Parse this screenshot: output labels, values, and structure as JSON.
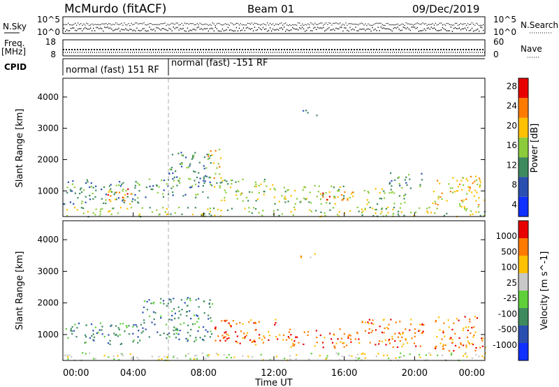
{
  "header": {
    "radar": "McMurdo (fitACF)",
    "beam": "Beam 01",
    "date": "09/Dec/2019"
  },
  "noise_panel": {
    "left_label": "N.Sky",
    "left_ticks": [
      "10^5",
      "10^0"
    ],
    "right_label": "N.Search",
    "right_ticks": [
      "10^5",
      "10^0"
    ]
  },
  "freq_panel": {
    "left_label": "Freq.",
    "left_unit": "[MHz]",
    "left_ticks": [
      "18",
      "8"
    ],
    "right_label": "Nave",
    "right_ticks": [
      "60",
      "0"
    ]
  },
  "cpid_panel": {
    "label": "CPID",
    "modes": [
      "normal (fast) 151 RF",
      "normal (fast) -151 RF"
    ]
  },
  "chart_data": [
    {
      "type": "heatmap",
      "name": "power",
      "ylabel": "Slant Range [km]",
      "yticks": [
        1000,
        2000,
        3000,
        4000
      ],
      "ylim": [
        180,
        4600
      ],
      "colorbar_label": "Power [dB]",
      "colorbar_ticks": [
        "4",
        "8",
        "12",
        "16",
        "20",
        "24",
        "28"
      ],
      "colorbar_colors": [
        "#1030ff",
        "#2a4fb0",
        "#3e8a5e",
        "#8ccc3c",
        "#ffc000",
        "#ff7b00",
        "#e80000"
      ],
      "scatter_regions": [
        {
          "x0": 0.0,
          "x1": 4.6,
          "range": [
            600,
            1400
          ],
          "level": 2
        },
        {
          "x0": 2.5,
          "x1": 4.0,
          "range": [
            600,
            1100
          ],
          "level": 5
        },
        {
          "x0": 4.5,
          "x1": 6.0,
          "range": [
            800,
            1400
          ],
          "level": 2
        },
        {
          "x0": 6.0,
          "x1": 8.5,
          "range": [
            800,
            2300
          ],
          "level": 2
        },
        {
          "x0": 8.2,
          "x1": 9.0,
          "range": [
            1400,
            2400
          ],
          "level": 4
        },
        {
          "x0": 8.5,
          "x1": 12.0,
          "range": [
            700,
            1400
          ],
          "level": 3
        },
        {
          "x0": 12.0,
          "x1": 16.5,
          "range": [
            600,
            1200
          ],
          "level": 3
        },
        {
          "x0": 14.5,
          "x1": 16.5,
          "range": [
            700,
            1000
          ],
          "level": 5
        },
        {
          "x0": 17.0,
          "x1": 19.5,
          "range": [
            600,
            1100
          ],
          "level": 3
        },
        {
          "x0": 18.5,
          "x1": 20.5,
          "range": [
            1100,
            1600
          ],
          "level": 2
        },
        {
          "x0": 21.0,
          "x1": 24.0,
          "range": [
            500,
            1500
          ],
          "level": 4
        },
        {
          "x0": 0.0,
          "x1": 24.0,
          "range": [
            200,
            500
          ],
          "level": 3
        },
        {
          "x0": 13.5,
          "x1": 14.5,
          "range": [
            3400,
            3600
          ],
          "level": 2
        }
      ]
    },
    {
      "type": "heatmap",
      "name": "velocity",
      "ylabel": "Slant Range [km]",
      "yticks": [
        1000,
        2000,
        3000,
        4000
      ],
      "ylim": [
        180,
        4600
      ],
      "colorbar_label": "Velocity [m s^-1]",
      "colorbar_ticks": [
        "1000",
        "500",
        "100",
        "25",
        "-25",
        "-100",
        "-500",
        "-1000"
      ],
      "colorbar_colors": [
        "#1030ff",
        "#2a4fb0",
        "#3e8a5e",
        "#5fcf3a",
        "#c8c8c8",
        "#ffc000",
        "#ff7b00",
        "#e80000"
      ],
      "scatter_regions": [
        {
          "x0": 0.0,
          "x1": 4.6,
          "range": [
            700,
            1400
          ],
          "level": 2
        },
        {
          "x0": 4.5,
          "x1": 8.5,
          "range": [
            800,
            2200
          ],
          "level": 2
        },
        {
          "x0": 8.5,
          "x1": 12.5,
          "range": [
            700,
            1500
          ],
          "level": 6
        },
        {
          "x0": 12.5,
          "x1": 16.5,
          "range": [
            600,
            1200
          ],
          "level": 6
        },
        {
          "x0": 16.5,
          "x1": 20.5,
          "range": [
            600,
            1500
          ],
          "level": 6
        },
        {
          "x0": 21.0,
          "x1": 24.0,
          "range": [
            500,
            1600
          ],
          "level": 6
        },
        {
          "x0": 0.0,
          "x1": 24.0,
          "range": [
            200,
            450
          ],
          "level": 4
        },
        {
          "x0": 13.5,
          "x1": 14.5,
          "range": [
            3400,
            3600
          ],
          "level": 5
        }
      ]
    }
  ],
  "x_axis": {
    "label": "Time UT",
    "ticks": [
      "00:00",
      "04:00",
      "08:00",
      "12:00",
      "16:00",
      "20:00",
      "00:00"
    ]
  }
}
